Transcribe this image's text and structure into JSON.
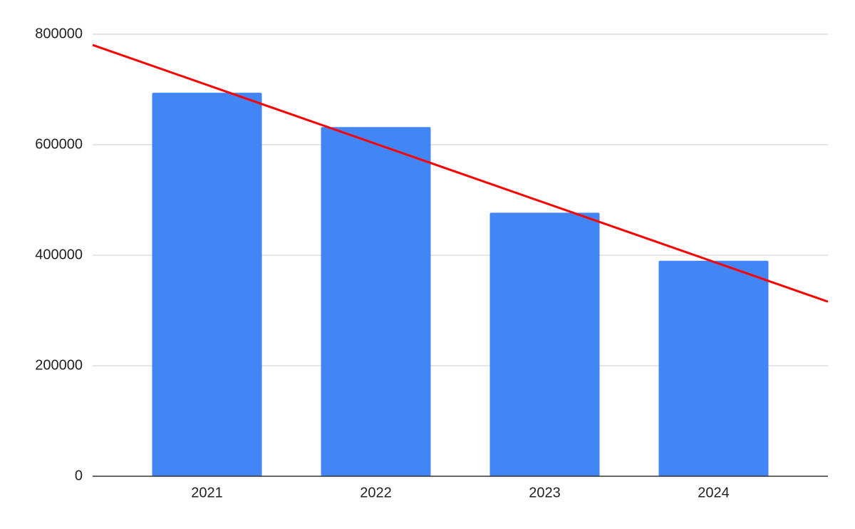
{
  "chart_data": {
    "type": "bar",
    "categories": [
      "2021",
      "2022",
      "2023",
      "2024"
    ],
    "values": [
      694000,
      632000,
      477000,
      390000
    ],
    "color": "#4285f4",
    "ylim": [
      0,
      800000
    ],
    "yticks": [
      0,
      200000,
      400000,
      600000,
      800000
    ],
    "grid": true,
    "trendline": {
      "type": "linear",
      "color": "#ff0000"
    }
  }
}
